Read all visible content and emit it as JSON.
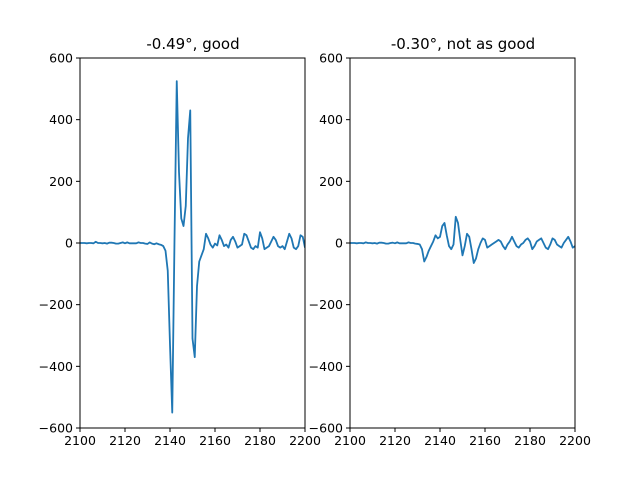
{
  "chart_data": [
    {
      "type": "line",
      "title": "-0.49°, good",
      "xlabel": "",
      "ylabel": "",
      "xlim": [
        2100,
        2200
      ],
      "ylim": [
        -600,
        600
      ],
      "xticks": [
        2100,
        2120,
        2140,
        2160,
        2180,
        2200
      ],
      "yticks": [
        -600,
        -400,
        -200,
        0,
        200,
        400,
        600
      ],
      "xtick_labels": [
        "2100",
        "2120",
        "2140",
        "2160",
        "2180",
        "2200"
      ],
      "ytick_labels": [
        "−600",
        "−400",
        "−200",
        "0",
        "200",
        "400",
        "600"
      ],
      "grid": false,
      "legend": "none",
      "series": [
        {
          "color": "#1f77b4",
          "x": [
            2100,
            2101,
            2102,
            2103,
            2104,
            2105,
            2106,
            2107,
            2108,
            2109,
            2110,
            2111,
            2112,
            2113,
            2114,
            2115,
            2116,
            2117,
            2118,
            2119,
            2120,
            2121,
            2122,
            2123,
            2124,
            2125,
            2126,
            2127,
            2128,
            2129,
            2130,
            2131,
            2132,
            2133,
            2134,
            2135,
            2136,
            2137,
            2138,
            2139,
            2140,
            2141,
            2142,
            2143,
            2144,
            2145,
            2146,
            2147,
            2148,
            2149,
            2150,
            2151,
            2152,
            2153,
            2154,
            2155,
            2156,
            2157,
            2158,
            2159,
            2160,
            2161,
            2162,
            2163,
            2164,
            2165,
            2166,
            2167,
            2168,
            2169,
            2170,
            2171,
            2172,
            2173,
            2174,
            2175,
            2176,
            2177,
            2178,
            2179,
            2180,
            2181,
            2182,
            2183,
            2184,
            2185,
            2186,
            2187,
            2188,
            2189,
            2190,
            2191,
            2192,
            2193,
            2194,
            2195,
            2196,
            2197,
            2198,
            2199,
            2200
          ],
          "y": [
            0,
            0,
            0,
            -1,
            0,
            0,
            -1,
            4,
            0,
            0,
            -1,
            0,
            -2,
            1,
            1,
            0,
            -2,
            -2,
            0,
            2,
            -1,
            2,
            -1,
            -1,
            -1,
            -1,
            2,
            0,
            0,
            -2,
            -3,
            2,
            -2,
            -4,
            -1,
            -4,
            -6,
            -10,
            -25,
            -90,
            -330,
            -550,
            10,
            525,
            230,
            80,
            55,
            120,
            340,
            430,
            -310,
            -370,
            -140,
            -60,
            -40,
            -20,
            30,
            15,
            -5,
            -15,
            -2,
            -8,
            25,
            10,
            -10,
            -5,
            -15,
            10,
            20,
            5,
            -15,
            -10,
            -5,
            30,
            25,
            5,
            -15,
            -20,
            -10,
            -15,
            35,
            15,
            -20,
            -15,
            -10,
            5,
            20,
            10,
            -10,
            -15,
            -10,
            -20,
            5,
            30,
            15,
            -15,
            -20,
            -10,
            25,
            20,
            -15
          ]
        }
      ]
    },
    {
      "type": "line",
      "title": "-0.30°, not as good",
      "xlabel": "",
      "ylabel": "",
      "xlim": [
        2100,
        2200
      ],
      "ylim": [
        -600,
        600
      ],
      "xticks": [
        2100,
        2120,
        2140,
        2160,
        2180,
        2200
      ],
      "yticks": [
        -600,
        -400,
        -200,
        0,
        200,
        400,
        600
      ],
      "xtick_labels": [
        "2100",
        "2120",
        "2140",
        "2160",
        "2180",
        "2200"
      ],
      "ytick_labels": [
        "−600",
        "−400",
        "−200",
        "0",
        "200",
        "400",
        "600"
      ],
      "grid": false,
      "legend": "none",
      "series": [
        {
          "color": "#1f77b4",
          "x": [
            2100,
            2101,
            2102,
            2103,
            2104,
            2105,
            2106,
            2107,
            2108,
            2109,
            2110,
            2111,
            2112,
            2113,
            2114,
            2115,
            2116,
            2117,
            2118,
            2119,
            2120,
            2121,
            2122,
            2123,
            2124,
            2125,
            2126,
            2127,
            2128,
            2129,
            2130,
            2131,
            2132,
            2133,
            2134,
            2135,
            2136,
            2137,
            2138,
            2139,
            2140,
            2141,
            2142,
            2143,
            2144,
            2145,
            2146,
            2147,
            2148,
            2149,
            2150,
            2151,
            2152,
            2153,
            2154,
            2155,
            2156,
            2157,
            2158,
            2159,
            2160,
            2161,
            2162,
            2163,
            2164,
            2165,
            2166,
            2167,
            2168,
            2169,
            2170,
            2171,
            2172,
            2173,
            2174,
            2175,
            2176,
            2177,
            2178,
            2179,
            2180,
            2181,
            2182,
            2183,
            2184,
            2185,
            2186,
            2187,
            2188,
            2189,
            2190,
            2191,
            2192,
            2193,
            2194,
            2195,
            2196,
            2197,
            2198,
            2199,
            2200
          ],
          "y": [
            0,
            0,
            0,
            -1,
            0,
            0,
            -1,
            2,
            0,
            0,
            -1,
            0,
            -2,
            1,
            1,
            0,
            -2,
            -2,
            0,
            1,
            -1,
            2,
            -1,
            -1,
            -1,
            -1,
            2,
            0,
            0,
            -2,
            -3,
            -5,
            -20,
            -60,
            -45,
            -25,
            -10,
            5,
            25,
            15,
            20,
            55,
            65,
            25,
            -10,
            -20,
            -5,
            85,
            65,
            10,
            -40,
            -10,
            30,
            20,
            -20,
            -65,
            -50,
            -20,
            0,
            15,
            10,
            -15,
            -10,
            -5,
            0,
            5,
            10,
            5,
            -10,
            -20,
            -5,
            5,
            20,
            5,
            -10,
            -15,
            -5,
            0,
            10,
            15,
            5,
            -20,
            -10,
            5,
            10,
            15,
            0,
            -15,
            -20,
            -5,
            15,
            10,
            -5,
            -10,
            -15,
            0,
            10,
            20,
            5,
            -15,
            -10
          ]
        }
      ]
    }
  ]
}
